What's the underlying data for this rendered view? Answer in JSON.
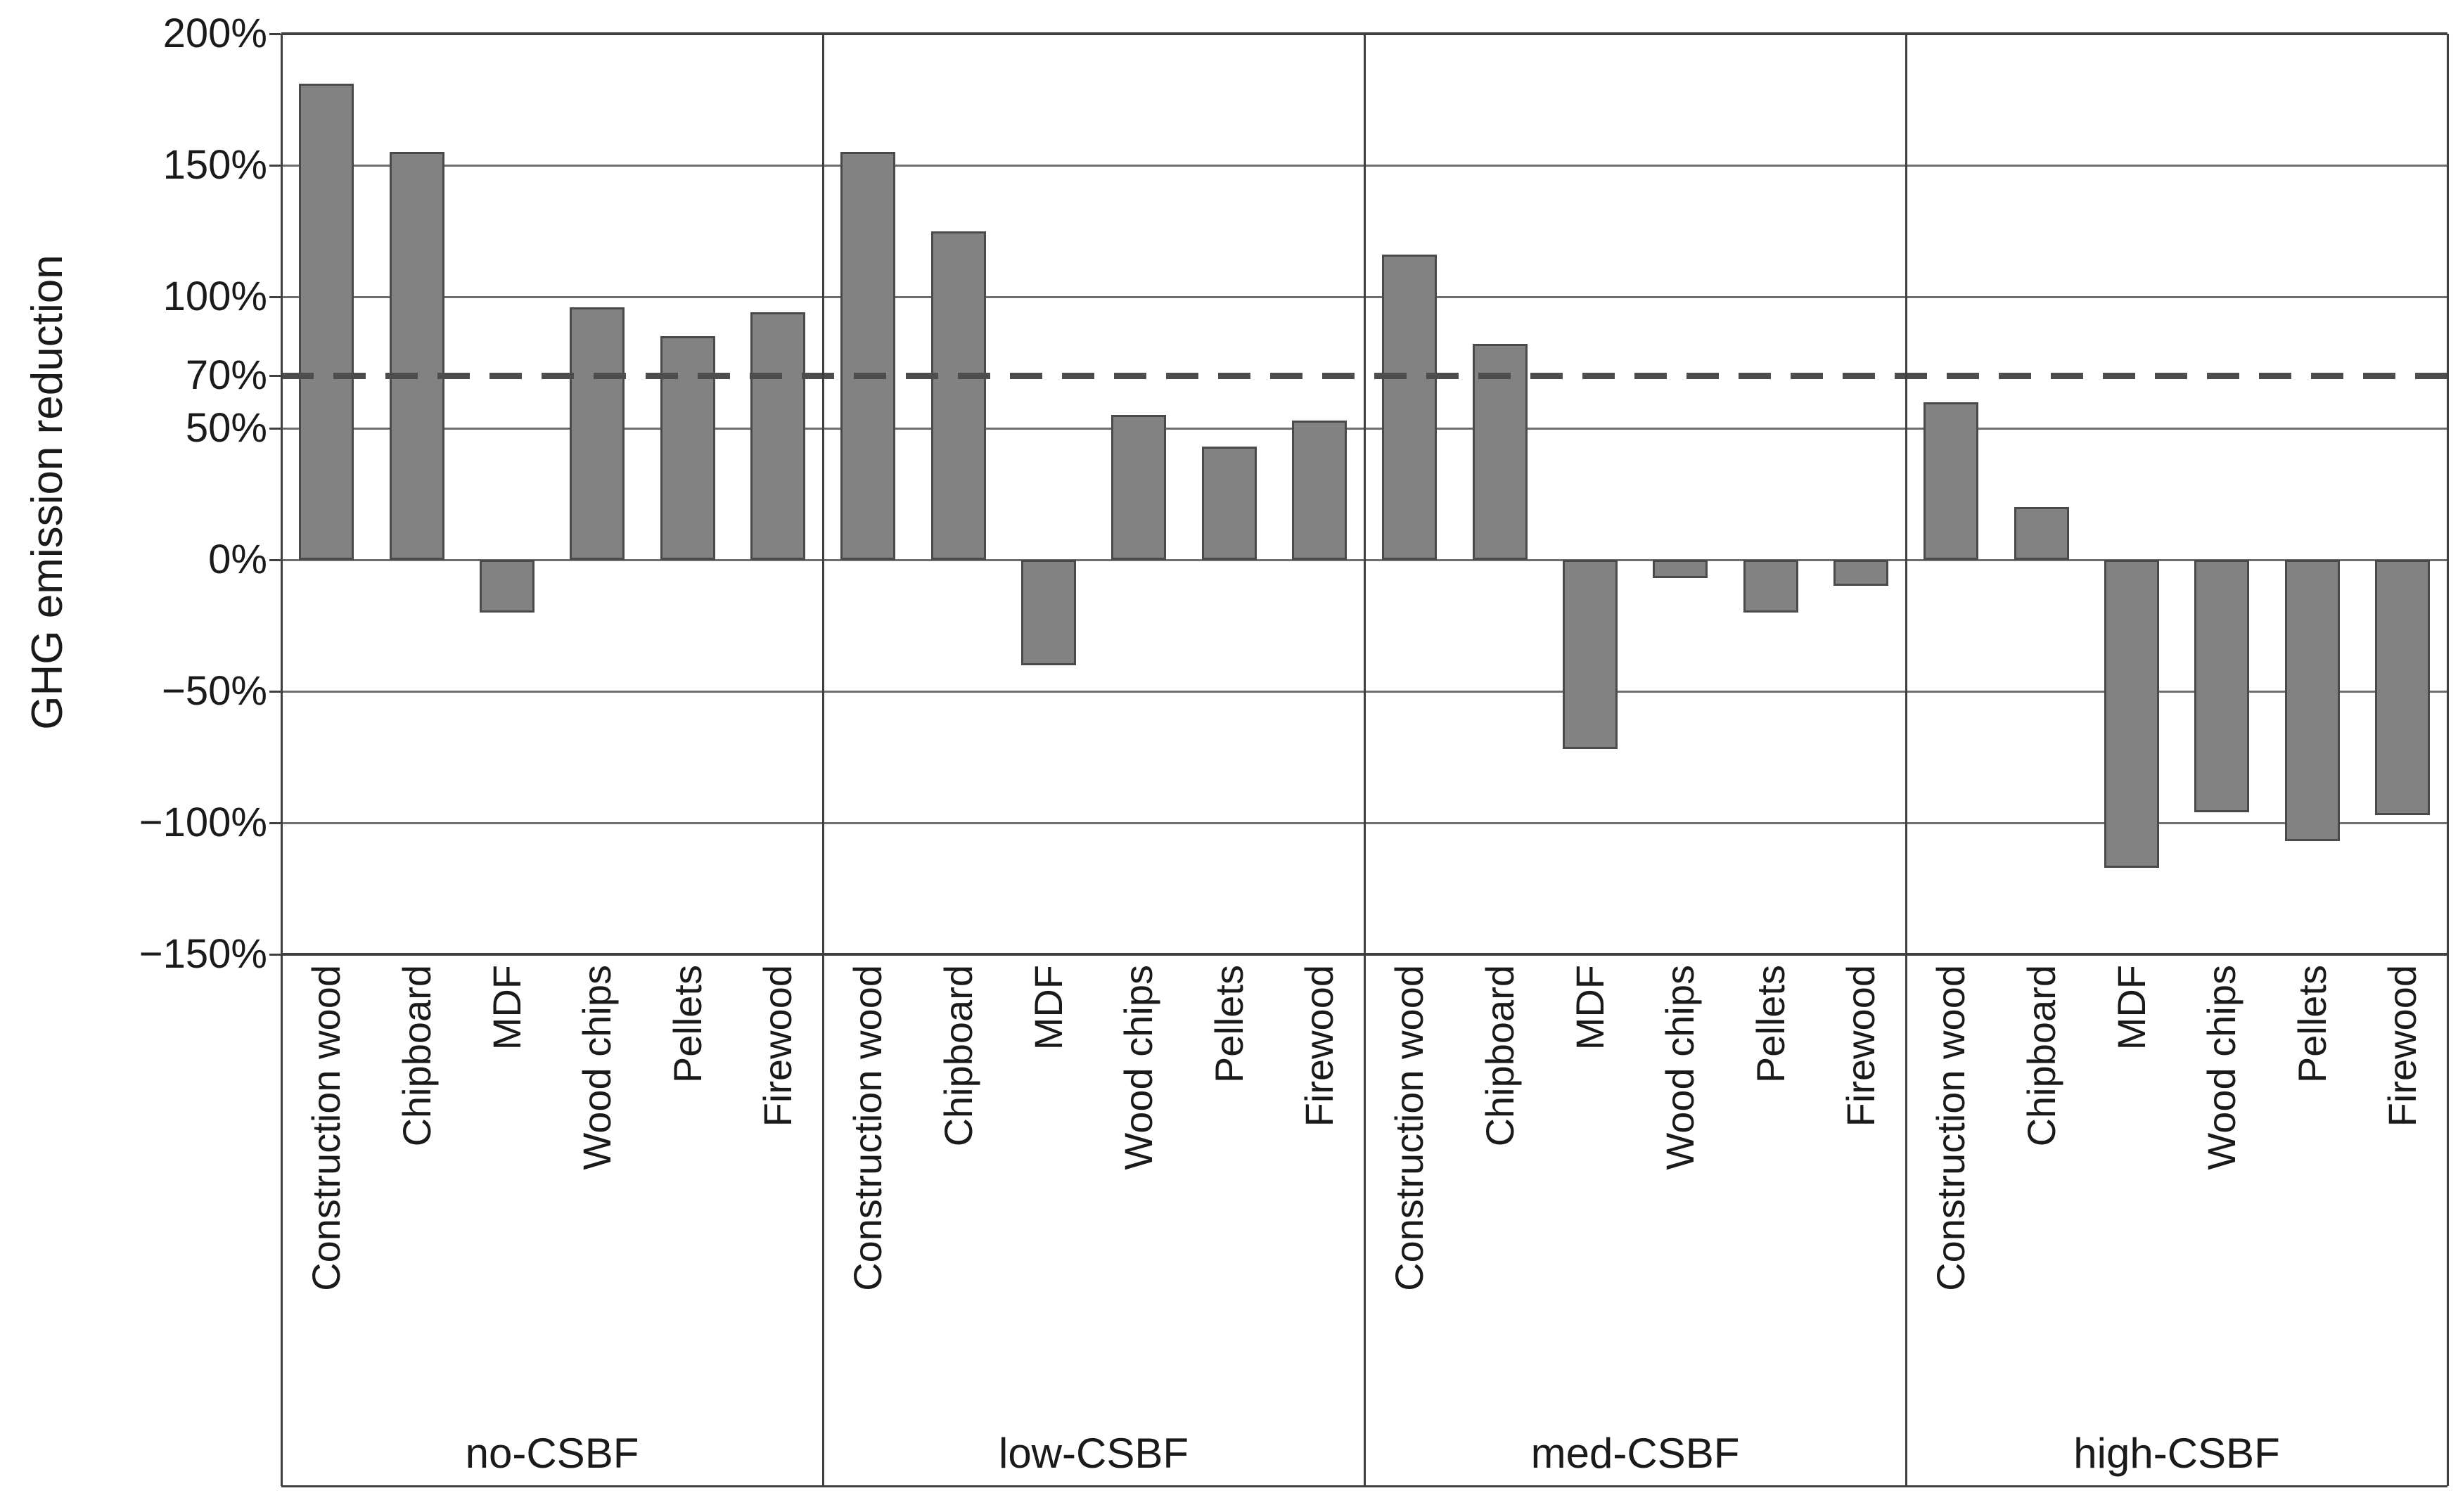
{
  "chart_data": {
    "type": "bar",
    "title": "",
    "xlabel": "",
    "ylabel": "GHG emission reduction",
    "ylim": [
      -150,
      200
    ],
    "grid": "horizontal",
    "legend": "none",
    "bar_color": "#828282",
    "bar_border_color": "#4a4a4a",
    "reference_line": {
      "value": 70,
      "style": "dashed",
      "color": "#4d4d4d",
      "label": "70%"
    },
    "y_ticks": [
      {
        "label": "200%",
        "value": 200
      },
      {
        "label": "150%",
        "value": 150
      },
      {
        "label": "100%",
        "value": 100
      },
      {
        "label": "70%",
        "value": 70
      },
      {
        "label": "50%",
        "value": 50
      },
      {
        "label": "0%",
        "value": 0
      },
      {
        "label": "−50%",
        "value": -50
      },
      {
        "label": "−100%",
        "value": -100
      },
      {
        "label": "−150%",
        "value": -150
      }
    ],
    "categories": [
      "Construction wood",
      "Chipboard",
      "MDF",
      "Wood chips",
      "Pellets",
      "Firewood"
    ],
    "groups": [
      {
        "label": "no-CSBF",
        "values": [
          181,
          155,
          -20,
          96,
          85,
          94
        ]
      },
      {
        "label": "low-CSBF",
        "values": [
          155,
          125,
          -40,
          55,
          43,
          53
        ]
      },
      {
        "label": "med-CSBF",
        "values": [
          116,
          82,
          -72,
          -7,
          -20,
          -10
        ]
      },
      {
        "label": "high-CSBF",
        "values": [
          60,
          20,
          -117,
          -96,
          -107,
          -97
        ]
      }
    ]
  }
}
